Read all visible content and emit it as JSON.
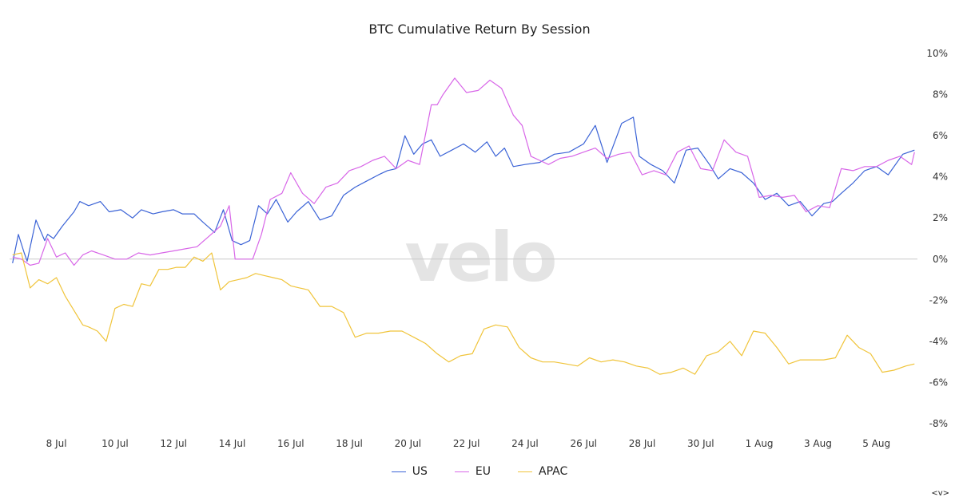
{
  "chart_data": {
    "type": "line",
    "title": "BTC Cumulative Return By Session",
    "watermark": "velo",
    "y_axis_position": "right",
    "ylim": [
      -8,
      10
    ],
    "y_ticks": [
      10,
      8,
      6,
      4,
      2,
      0,
      -2,
      -4,
      -6,
      -8
    ],
    "y_tick_labels": [
      "10%",
      "8%",
      "6%",
      "4%",
      "2%",
      "0%",
      "-2%",
      "-4%",
      "-6%",
      "-8%"
    ],
    "xlim": [
      6.4,
      37.4
    ],
    "x_ticks": [
      8,
      10,
      12,
      14,
      16,
      18,
      20,
      22,
      24,
      26,
      28,
      30,
      32,
      34,
      36
    ],
    "x_tick_labels": [
      "8 Jul",
      "10 Jul",
      "12 Jul",
      "14 Jul",
      "16 Jul",
      "18 Jul",
      "20 Jul",
      "22 Jul",
      "24 Jul",
      "26 Jul",
      "28 Jul",
      "30 Jul",
      "1 Aug",
      "3 Aug",
      "5 Aug"
    ],
    "x_unit_note": "day of July (32 = 1 Aug)",
    "legend_position": "bottom-center",
    "zero_line": true,
    "grid": false,
    "series": [
      {
        "name": "US",
        "color": "#3b63d6",
        "x": [
          6.5,
          6.7,
          6.9,
          7.0,
          7.3,
          7.6,
          7.7,
          7.9,
          8.2,
          8.6,
          8.8,
          9.1,
          9.5,
          9.8,
          10.2,
          10.6,
          10.9,
          11.3,
          11.6,
          12.0,
          12.3,
          12.7,
          13.0,
          13.4,
          13.7,
          14.0,
          14.3,
          14.6,
          14.9,
          15.2,
          15.5,
          15.9,
          16.2,
          16.6,
          17.0,
          17.4,
          17.8,
          18.2,
          18.6,
          19.0,
          19.3,
          19.6,
          19.9,
          20.2,
          20.5,
          20.8,
          21.1,
          21.5,
          21.9,
          22.3,
          22.7,
          23.0,
          23.3,
          23.6,
          24.0,
          24.5,
          25.0,
          25.5,
          26.0,
          26.4,
          26.8,
          27.3,
          27.7,
          27.9,
          28.3,
          28.7,
          29.1,
          29.5,
          29.9,
          30.3,
          30.6,
          31.0,
          31.4,
          31.8,
          32.2,
          32.6,
          33.0,
          33.4,
          33.8,
          34.2,
          34.5,
          34.8,
          35.2,
          35.6,
          36.0,
          36.4,
          36.9,
          37.3
        ],
        "values": [
          -0.2,
          1.2,
          0.3,
          -0.1,
          1.9,
          0.9,
          1.2,
          1.0,
          1.6,
          2.3,
          2.8,
          2.6,
          2.8,
          2.3,
          2.4,
          2.0,
          2.4,
          2.2,
          2.3,
          2.4,
          2.2,
          2.2,
          1.8,
          1.3,
          2.4,
          0.9,
          0.7,
          0.9,
          2.6,
          2.2,
          2.9,
          1.8,
          2.3,
          2.8,
          1.9,
          2.1,
          3.1,
          3.5,
          3.8,
          4.1,
          4.3,
          4.4,
          6.0,
          5.1,
          5.6,
          5.8,
          5.0,
          5.3,
          5.6,
          5.2,
          5.7,
          5.0,
          5.4,
          4.5,
          4.6,
          4.7,
          5.1,
          5.2,
          5.6,
          6.5,
          4.7,
          6.6,
          6.9,
          5.0,
          4.6,
          4.3,
          3.7,
          5.3,
          5.4,
          4.6,
          3.9,
          4.4,
          4.2,
          3.7,
          2.9,
          3.2,
          2.6,
          2.8,
          2.1,
          2.7,
          2.8,
          3.2,
          3.7,
          4.3,
          4.5,
          4.1,
          5.1,
          5.3
        ]
      },
      {
        "name": "EU",
        "color": "#d867e8",
        "x": [
          6.5,
          6.8,
          7.1,
          7.4,
          7.7,
          8.0,
          8.3,
          8.6,
          8.9,
          9.2,
          9.6,
          10.0,
          10.4,
          10.8,
          11.2,
          11.6,
          12.0,
          12.4,
          12.8,
          13.2,
          13.6,
          13.9,
          14.1,
          14.4,
          14.7,
          15.0,
          15.3,
          15.7,
          16.0,
          16.4,
          16.8,
          17.2,
          17.6,
          18.0,
          18.4,
          18.8,
          19.2,
          19.6,
          20.0,
          20.4,
          20.8,
          21.0,
          21.2,
          21.6,
          22.0,
          22.4,
          22.8,
          23.2,
          23.6,
          23.9,
          24.2,
          24.5,
          24.8,
          25.2,
          25.6,
          26.0,
          26.4,
          26.8,
          27.2,
          27.6,
          28.0,
          28.4,
          28.8,
          29.2,
          29.6,
          30.0,
          30.4,
          30.8,
          31.2,
          31.6,
          32.0,
          32.4,
          32.8,
          33.2,
          33.6,
          34.0,
          34.4,
          34.8,
          35.2,
          35.6,
          36.0,
          36.4,
          36.8,
          37.2,
          37.3
        ],
        "values": [
          0.1,
          0.0,
          -0.3,
          -0.2,
          1.0,
          0.1,
          0.3,
          -0.3,
          0.2,
          0.4,
          0.2,
          0.0,
          0.0,
          0.3,
          0.2,
          0.3,
          0.4,
          0.5,
          0.6,
          1.1,
          1.6,
          2.6,
          0.0,
          0.0,
          0.0,
          1.2,
          2.9,
          3.2,
          4.2,
          3.2,
          2.7,
          3.5,
          3.7,
          4.3,
          4.5,
          4.8,
          5.0,
          4.4,
          4.8,
          4.6,
          7.5,
          7.5,
          8.0,
          8.8,
          8.1,
          8.2,
          8.7,
          8.3,
          7.0,
          6.5,
          5.0,
          4.8,
          4.6,
          4.9,
          5.0,
          5.2,
          5.4,
          4.9,
          5.1,
          5.2,
          4.1,
          4.3,
          4.1,
          5.2,
          5.5,
          4.4,
          4.3,
          5.8,
          5.2,
          5.0,
          3.0,
          3.1,
          3.0,
          3.1,
          2.3,
          2.6,
          2.5,
          4.4,
          4.3,
          4.5,
          4.5,
          4.8,
          5.0,
          4.6,
          5.2
        ]
      },
      {
        "name": "APAC",
        "color": "#f0c43a",
        "x": [
          6.5,
          6.8,
          7.1,
          7.4,
          7.7,
          8.0,
          8.3,
          8.6,
          8.9,
          9.1,
          9.4,
          9.7,
          10.0,
          10.3,
          10.6,
          10.9,
          11.2,
          11.5,
          11.8,
          12.1,
          12.4,
          12.7,
          13.0,
          13.3,
          13.6,
          13.9,
          14.2,
          14.5,
          14.8,
          15.1,
          15.4,
          15.7,
          16.0,
          16.3,
          16.6,
          17.0,
          17.4,
          17.8,
          18.2,
          18.6,
          19.0,
          19.4,
          19.8,
          20.2,
          20.6,
          21.0,
          21.4,
          21.8,
          22.2,
          22.6,
          23.0,
          23.4,
          23.8,
          24.2,
          24.6,
          25.0,
          25.4,
          25.8,
          26.2,
          26.6,
          27.0,
          27.4,
          27.8,
          28.2,
          28.6,
          29.0,
          29.4,
          29.8,
          30.2,
          30.6,
          31.0,
          31.4,
          31.8,
          32.2,
          32.6,
          33.0,
          33.4,
          33.8,
          34.2,
          34.6,
          35.0,
          35.4,
          35.8,
          36.2,
          36.6,
          37.0,
          37.3
        ],
        "values": [
          0.2,
          0.3,
          -1.4,
          -1.0,
          -1.2,
          -0.9,
          -1.8,
          -2.5,
          -3.2,
          -3.3,
          -3.5,
          -4.0,
          -2.4,
          -2.2,
          -2.3,
          -1.2,
          -1.3,
          -0.5,
          -0.5,
          -0.4,
          -0.4,
          0.1,
          -0.1,
          0.3,
          -1.5,
          -1.1,
          -1.0,
          -0.9,
          -0.7,
          -0.8,
          -0.9,
          -1.0,
          -1.3,
          -1.4,
          -1.5,
          -2.3,
          -2.3,
          -2.6,
          -3.8,
          -3.6,
          -3.6,
          -3.5,
          -3.5,
          -3.8,
          -4.1,
          -4.6,
          -5.0,
          -4.7,
          -4.6,
          -3.4,
          -3.2,
          -3.3,
          -4.3,
          -4.8,
          -5.0,
          -5.0,
          -5.1,
          -5.2,
          -4.8,
          -5.0,
          -4.9,
          -5.0,
          -5.2,
          -5.3,
          -5.6,
          -5.5,
          -5.3,
          -5.6,
          -4.7,
          -4.5,
          -4.0,
          -4.7,
          -3.5,
          -3.6,
          -4.3,
          -5.1,
          -4.9,
          -4.9,
          -4.9,
          -4.8,
          -3.7,
          -4.3,
          -4.6,
          -5.5,
          -5.4,
          -5.2,
          -5.1
        ]
      }
    ]
  },
  "corner_mark": "<v>"
}
